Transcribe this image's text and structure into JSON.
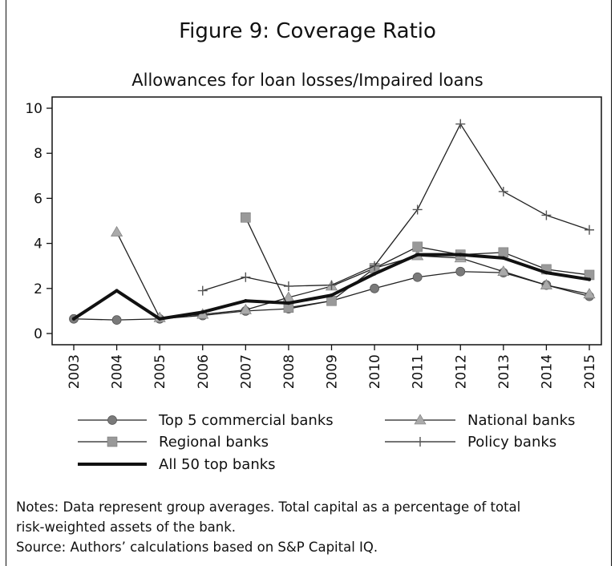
{
  "figure_title": "Figure 9: Coverage Ratio",
  "notes": [
    "Notes: Data represent group averages. Total capital as a percentage of total",
    "risk-weighted assets of the bank.",
    "Source: Authors’ calculations based on S&P Capital IQ."
  ],
  "chart_data": {
    "type": "line",
    "title": "Allowances for loan losses/Impaired loans",
    "xlabel": "",
    "ylabel": "",
    "x": [
      "2003",
      "2004",
      "2005",
      "2006",
      "2007",
      "2008",
      "2009",
      "2010",
      "2011",
      "2012",
      "2013",
      "2014",
      "2015"
    ],
    "ylim": [
      0,
      10
    ],
    "yticks": [
      0,
      2,
      4,
      6,
      8,
      10
    ],
    "ytick_labels": [
      "0",
      "2",
      "4",
      "6",
      "8",
      "10"
    ],
    "grid": false,
    "legend_position": "bottom",
    "series": [
      {
        "name": "Top 5 commercial banks",
        "marker": "circle",
        "color": "#7a7a7a",
        "line_color": "#222222",
        "width": 1.3,
        "values": [
          0.65,
          0.6,
          0.65,
          0.8,
          1.0,
          1.1,
          1.45,
          2.0,
          2.5,
          2.75,
          2.7,
          2.15,
          1.65
        ]
      },
      {
        "name": "National banks",
        "marker": "triangle",
        "color": "#aaaaaa",
        "line_color": "#222222",
        "width": 1.3,
        "values": [
          null,
          4.5,
          0.7,
          0.85,
          1.05,
          1.6,
          2.1,
          2.9,
          3.45,
          3.35,
          2.75,
          2.15,
          1.75
        ]
      },
      {
        "name": "Regional banks",
        "marker": "square",
        "color": "#999999",
        "line_color": "#222222",
        "width": 1.3,
        "values": [
          null,
          null,
          null,
          null,
          5.15,
          1.15,
          1.45,
          2.9,
          3.85,
          3.5,
          3.6,
          2.85,
          2.6
        ]
      },
      {
        "name": "Policy banks",
        "marker": "plus",
        "color": "#555555",
        "line_color": "#222222",
        "width": 1.3,
        "values": [
          null,
          null,
          null,
          1.9,
          2.5,
          2.1,
          2.15,
          3.0,
          5.5,
          9.3,
          6.3,
          5.25,
          4.6
        ]
      },
      {
        "name": "All 50 top banks",
        "marker": "none",
        "color": "#111111",
        "line_color": "#111111",
        "width": 4,
        "values": [
          0.65,
          1.9,
          0.65,
          0.95,
          1.45,
          1.35,
          1.7,
          2.65,
          3.5,
          3.5,
          3.35,
          2.7,
          2.4
        ]
      }
    ]
  }
}
